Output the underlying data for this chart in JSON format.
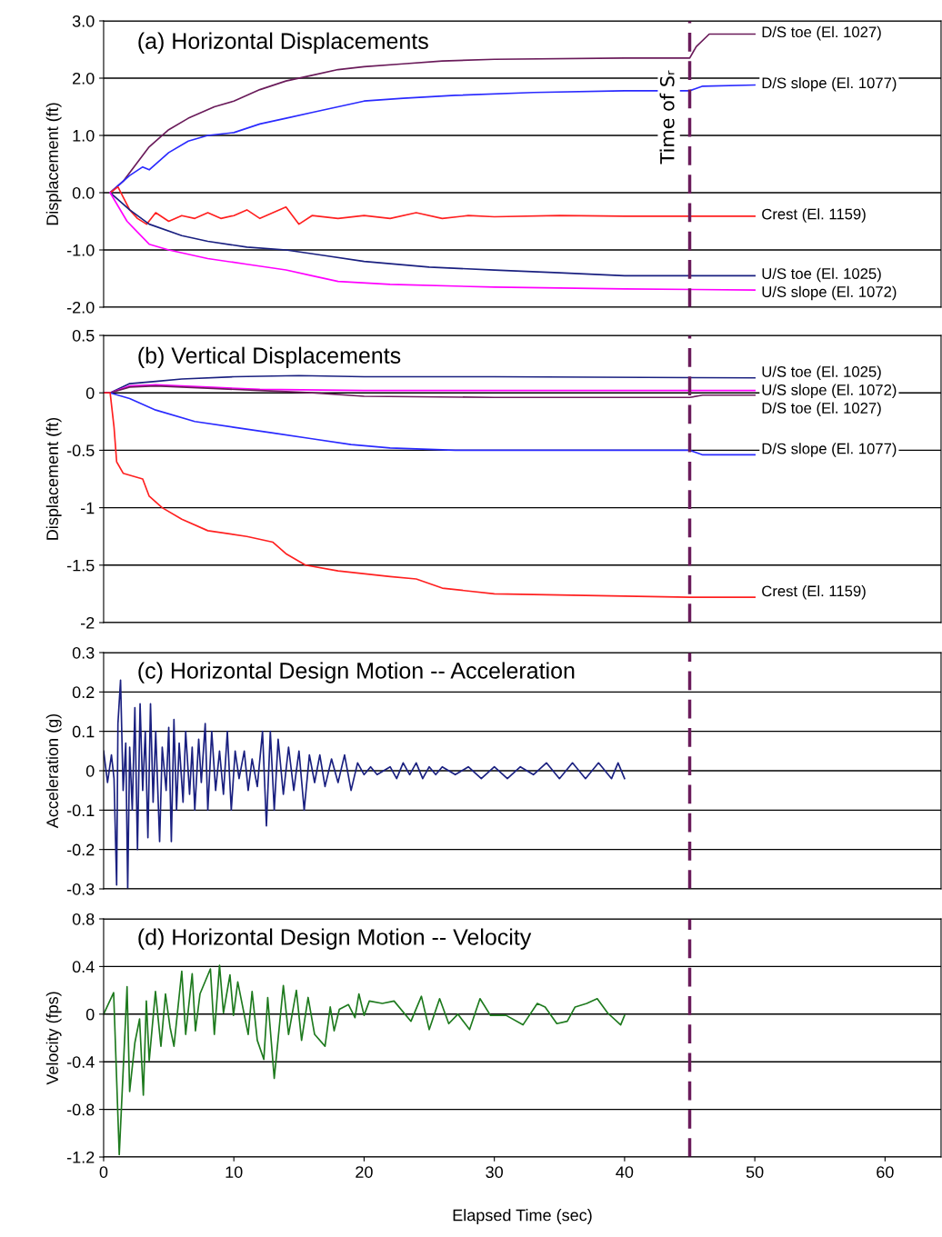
{
  "chart_data": [
    {
      "type": "line",
      "title": "(a) Horizontal Displacements",
      "ylabel": "Displacement (ft)",
      "xlim": [
        0,
        64.3
      ],
      "ylim": [
        -2.0,
        3.0
      ],
      "yticks": [
        {
          "value": 3,
          "label": "3.0"
        },
        {
          "value": 2,
          "label": "2.0"
        },
        {
          "value": 1,
          "label": "1.0"
        },
        {
          "value": 0,
          "label": "0.0"
        },
        {
          "value": -1,
          "label": "-1.0"
        },
        {
          "value": -2,
          "label": "-2.0"
        }
      ],
      "tick_labels": "y",
      "grid": "y",
      "legend": false,
      "ref_lines": [
        {
          "axis": "x",
          "value": 45,
          "label": "Time of Sᵣ",
          "color": "#6a1b5a",
          "line_style": "dashed"
        }
      ],
      "series": [
        {
          "name": "D/S toe (El. 1027)",
          "color": "#6a1b5a",
          "x": [
            0.5,
            1.5,
            2.5,
            3.5,
            5,
            6.5,
            8.5,
            10,
            12,
            14,
            16,
            18,
            20,
            23,
            26,
            30,
            40,
            45,
            45.5,
            46.5,
            50
          ],
          "values": [
            0,
            0.2,
            0.5,
            0.8,
            1.1,
            1.3,
            1.5,
            1.6,
            1.8,
            1.95,
            2.05,
            2.15,
            2.2,
            2.25,
            2.3,
            2.33,
            2.35,
            2.35,
            2.55,
            2.77,
            2.77
          ]
        },
        {
          "name": "D/S slope (El. 1077)",
          "color": "#2a2aff",
          "x": [
            0.5,
            2,
            3,
            3.5,
            5,
            6.5,
            8,
            10,
            12,
            14,
            16,
            18,
            20,
            23,
            27,
            33,
            40,
            45,
            46,
            50
          ],
          "values": [
            0,
            0.3,
            0.45,
            0.4,
            0.7,
            0.9,
            1.0,
            1.05,
            1.2,
            1.3,
            1.4,
            1.5,
            1.6,
            1.65,
            1.7,
            1.75,
            1.78,
            1.78,
            1.86,
            1.88
          ]
        },
        {
          "name": "Crest (El. 1159)",
          "color": "#ff2020",
          "x": [
            0.5,
            1.1,
            2,
            2.6,
            3.3,
            4,
            5,
            6,
            7,
            8,
            9,
            10,
            11,
            12,
            13,
            14,
            15,
            16,
            18,
            20,
            22,
            24,
            26,
            28,
            30,
            35,
            40,
            50
          ],
          "values": [
            0,
            0.1,
            -0.3,
            -0.45,
            -0.55,
            -0.35,
            -0.5,
            -0.4,
            -0.45,
            -0.35,
            -0.45,
            -0.4,
            -0.3,
            -0.45,
            -0.35,
            -0.25,
            -0.55,
            -0.4,
            -0.45,
            -0.4,
            -0.45,
            -0.35,
            -0.45,
            -0.4,
            -0.42,
            -0.4,
            -0.41,
            -0.41
          ]
        },
        {
          "name": "U/S toe (El. 1025)",
          "color": "#1a2080",
          "x": [
            0.5,
            2,
            3.5,
            6,
            8,
            11,
            14,
            17,
            20,
            25,
            30,
            35,
            40,
            50
          ],
          "values": [
            0,
            -0.3,
            -0.55,
            -0.75,
            -0.85,
            -0.95,
            -1.0,
            -1.1,
            -1.2,
            -1.3,
            -1.35,
            -1.4,
            -1.45,
            -1.45
          ]
        },
        {
          "name": "U/S slope (El. 1072)",
          "color": "#ff00ff",
          "x": [
            0.5,
            1.8,
            3.5,
            5,
            8,
            11,
            14,
            16,
            18,
            22,
            30,
            40,
            50
          ],
          "values": [
            0,
            -0.5,
            -0.9,
            -1.0,
            -1.15,
            -1.25,
            -1.35,
            -1.45,
            -1.55,
            -1.6,
            -1.65,
            -1.68,
            -1.7
          ]
        }
      ]
    },
    {
      "type": "line",
      "title": "(b) Vertical Displacements",
      "ylabel": "Displacement (ft)",
      "xlim": [
        0,
        64.3
      ],
      "ylim": [
        -2,
        0.5
      ],
      "yticks": [
        0.5,
        0,
        -0.5,
        -1,
        -1.5,
        -2
      ],
      "tick_labels": "y",
      "grid": "y",
      "legend": false,
      "ref_lines": [
        {
          "axis": "x",
          "value": 45,
          "color": "#6a1b5a",
          "line_style": "dashed"
        }
      ],
      "series": [
        {
          "name": "U/S toe (El. 1025)",
          "color": "#1a2080",
          "x": [
            0,
            0.5,
            2,
            4,
            6,
            10,
            15,
            20,
            30,
            50
          ],
          "values": [
            0,
            0,
            0.08,
            0.1,
            0.12,
            0.14,
            0.15,
            0.14,
            0.14,
            0.13
          ]
        },
        {
          "name": "U/S slope (El. 1072)",
          "color": "#ff00ff",
          "x": [
            0,
            0.5,
            2,
            4,
            8,
            12,
            20,
            30,
            50
          ],
          "values": [
            0,
            0,
            0.06,
            0.07,
            0.05,
            0.03,
            0.02,
            0.02,
            0.02
          ]
        },
        {
          "name": "D/S toe (El. 1027)",
          "color": "#6a1b5a",
          "x": [
            0,
            0.5,
            2,
            4,
            8,
            12,
            16,
            20,
            30,
            45,
            46,
            50
          ],
          "values": [
            0,
            0,
            0.05,
            0.06,
            0.04,
            0.02,
            0.0,
            -0.03,
            -0.04,
            -0.04,
            -0.02,
            -0.02
          ]
        },
        {
          "name": "D/S slope (El. 1077)",
          "color": "#2a2aff",
          "x": [
            0,
            0.5,
            2,
            4,
            7,
            10,
            13,
            16,
            19,
            22,
            27,
            45,
            46,
            50
          ],
          "values": [
            0,
            0,
            -0.05,
            -0.15,
            -0.25,
            -0.3,
            -0.35,
            -0.4,
            -0.45,
            -0.48,
            -0.5,
            -0.5,
            -0.54,
            -0.54
          ]
        },
        {
          "name": "Crest (El. 1159)",
          "color": "#ff2020",
          "x": [
            0,
            0.5,
            0.8,
            1.0,
            1.5,
            3,
            3.5,
            4.5,
            6,
            8,
            11,
            13,
            14,
            15.5,
            18,
            22,
            24,
            26,
            30,
            35,
            45,
            50
          ],
          "values": [
            0,
            0,
            -0.3,
            -0.6,
            -0.7,
            -0.75,
            -0.9,
            -1.0,
            -1.1,
            -1.2,
            -1.25,
            -1.3,
            -1.4,
            -1.5,
            -1.55,
            -1.6,
            -1.62,
            -1.7,
            -1.75,
            -1.76,
            -1.78,
            -1.78
          ]
        }
      ]
    },
    {
      "type": "line",
      "title": "(c) Horizontal Design Motion -- Acceleration",
      "ylabel": "Acceleration (g)",
      "xlim": [
        0,
        64.3
      ],
      "ylim": [
        -0.3,
        0.3
      ],
      "yticks": [
        0.3,
        0.2,
        0.1,
        0,
        -0.1,
        -0.2,
        -0.3
      ],
      "tick_labels": "y",
      "grid": "y",
      "legend": false,
      "ref_lines": [
        {
          "axis": "x",
          "value": 45,
          "color": "#6a1b5a",
          "line_style": "dashed"
        }
      ],
      "series": [
        {
          "color": "#1a2080",
          "x": [
            0,
            0.3,
            0.6,
            0.8,
            1.0,
            1.1,
            1.3,
            1.5,
            1.7,
            1.85,
            2.0,
            2.2,
            2.4,
            2.6,
            2.8,
            3.0,
            3.2,
            3.4,
            3.6,
            3.8,
            4.0,
            4.3,
            4.5,
            4.8,
            5.0,
            5.2,
            5.4,
            5.6,
            5.8,
            6.1,
            6.3,
            6.6,
            6.8,
            7.0,
            7.3,
            7.5,
            7.8,
            8.0,
            8.3,
            8.6,
            8.9,
            9.2,
            9.5,
            9.8,
            10.1,
            10.4,
            10.8,
            11.1,
            11.4,
            11.8,
            12.2,
            12.5,
            12.8,
            13.1,
            13.4,
            13.8,
            14.2,
            14.6,
            15.0,
            15.4,
            15.8,
            16.2,
            16.6,
            17.0,
            17.5,
            18.0,
            18.5,
            19.0,
            19.5,
            20.0,
            20.5,
            21,
            22,
            22.5,
            23,
            23.5,
            24,
            24.5,
            25,
            25.5,
            26,
            27,
            28,
            29,
            30,
            31,
            32,
            33,
            34,
            35,
            36,
            37,
            38,
            39,
            39.5,
            40
          ],
          "values": [
            0.05,
            -0.03,
            0.04,
            -0.02,
            -0.29,
            0.12,
            0.23,
            -0.05,
            0.07,
            -0.3,
            0.06,
            -0.1,
            0.16,
            -0.2,
            0.17,
            -0.05,
            0.1,
            -0.17,
            0.17,
            -0.08,
            0.1,
            -0.18,
            0.06,
            -0.05,
            0.11,
            -0.18,
            0.13,
            -0.1,
            0.07,
            -0.08,
            0.1,
            -0.06,
            0.06,
            -0.1,
            0.08,
            -0.03,
            0.12,
            -0.1,
            0.1,
            -0.05,
            0.05,
            -0.06,
            0.1,
            -0.1,
            0.05,
            -0.02,
            0.05,
            -0.05,
            0.03,
            -0.04,
            0.1,
            -0.14,
            0.1,
            -0.1,
            0.08,
            -0.06,
            0.06,
            -0.05,
            0.05,
            -0.1,
            0.04,
            -0.03,
            0.04,
            -0.04,
            0.03,
            -0.03,
            0.04,
            -0.05,
            0.02,
            -0.01,
            0.01,
            -0.01,
            0.01,
            -0.02,
            0.02,
            -0.01,
            0.02,
            -0.02,
            0.01,
            -0.01,
            0.01,
            -0.01,
            0.01,
            -0.02,
            0.01,
            -0.02,
            0.01,
            -0.01,
            0.02,
            -0.02,
            0.02,
            -0.02,
            0.02,
            -0.02,
            0.02,
            -0.02
          ]
        }
      ]
    },
    {
      "type": "line",
      "title": "(d) Horizontal Design Motion -- Velocity",
      "ylabel": "Velocity (fps)",
      "xlabel": "Elapsed Time (sec)",
      "xlim": [
        0,
        64.3
      ],
      "xticks": [
        0,
        10,
        20,
        30,
        40,
        50,
        60
      ],
      "ylim": [
        -1.2,
        0.8
      ],
      "yticks": [
        0.8,
        0.4,
        0,
        -0.4,
        -0.8,
        -1.2
      ],
      "grid": "y",
      "legend": false,
      "ref_lines": [
        {
          "axis": "x",
          "value": 45,
          "color": "#6a1b5a",
          "line_style": "dashed"
        }
      ],
      "series": [
        {
          "color": "#1e7a1e",
          "x": [
            0,
            0.77,
            1.2,
            1.8,
            2.0,
            2.4,
            2.76,
            3.05,
            3.28,
            3.5,
            3.98,
            4.4,
            4.75,
            5.1,
            5.4,
            6.0,
            6.3,
            6.8,
            7.05,
            7.4,
            8.2,
            8.5,
            8.9,
            9.2,
            9.7,
            9.97,
            10.3,
            11.1,
            11.4,
            11.8,
            12.3,
            12.6,
            13.1,
            13.8,
            14.2,
            14.8,
            15.2,
            15.7,
            16.2,
            17.0,
            17.4,
            17.7,
            18.1,
            18.8,
            19.3,
            19.6,
            20.0,
            20.4,
            21.4,
            22.3,
            23.6,
            24.4,
            25.0,
            25.8,
            26.5,
            27.2,
            28.1,
            28.9,
            29.7,
            30.9,
            32.2,
            33.3,
            33.9,
            34.8,
            35.6,
            36.2,
            37.1,
            37.9,
            38.7,
            39.7,
            40.0
          ],
          "values": [
            0,
            0.18,
            -1.18,
            0.23,
            -0.65,
            -0.24,
            -0.04,
            -0.68,
            0.11,
            -0.39,
            0.19,
            -0.27,
            0.17,
            -0.11,
            -0.27,
            0.36,
            -0.17,
            0.34,
            -0.14,
            0.17,
            0.38,
            -0.17,
            0.41,
            0.01,
            0.33,
            -0.01,
            0.27,
            -0.17,
            0.19,
            -0.22,
            -0.38,
            0.14,
            -0.54,
            0.24,
            -0.17,
            0.2,
            -0.22,
            0.14,
            -0.17,
            -0.27,
            0.06,
            -0.14,
            0.04,
            0.08,
            -0.03,
            0.17,
            -0.01,
            0.11,
            0.09,
            0.11,
            -0.06,
            0.15,
            -0.13,
            0.13,
            -0.08,
            0,
            -0.13,
            0.13,
            -0.01,
            -0.01,
            -0.09,
            0.09,
            0.06,
            -0.08,
            -0.06,
            0.06,
            0.09,
            0.13,
            0.01,
            -0.09,
            -0.01
          ]
        }
      ]
    }
  ]
}
